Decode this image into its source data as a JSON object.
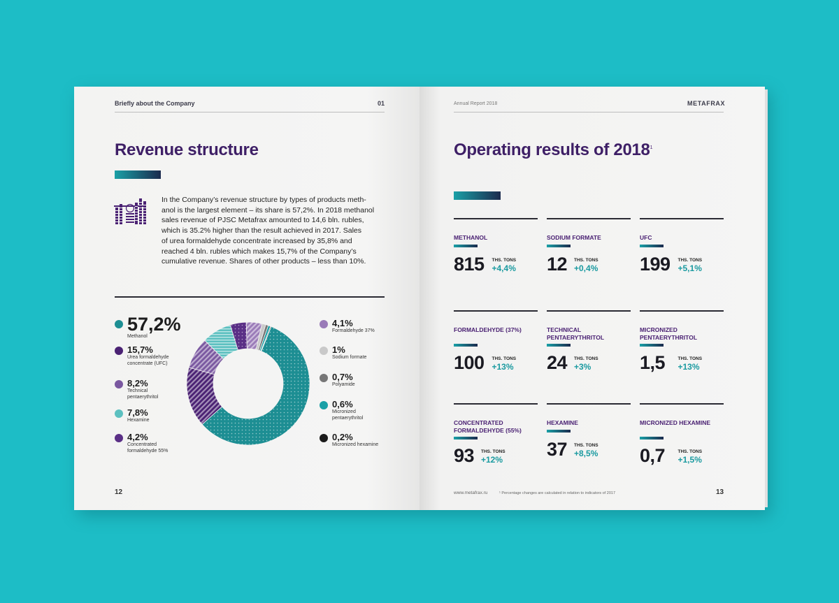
{
  "left": {
    "header_title": "Briefly about the Company",
    "header_num": "01",
    "title": "Revenue structure",
    "paragraph_lines": [
      "In the Company’s revenue structure by types of products meth-",
      "anol is the largest element – its share is 57,2%. In 2018 methanol",
      "sales revenue of PJSC Metafrax amounted to 14,6 bln. rubles,",
      "which is 35.2% higher than the result achieved in 2017. Sales",
      "of urea formaldehyde concentrate increased by 35,8% and",
      "reached 4 bln. rubles which makes 15,7% of the Company’s",
      "cumulative revenue. Shares of other products – less than 10%."
    ],
    "legend_left": [
      {
        "value": "57,2%",
        "label": [
          "Methanol"
        ],
        "color": "#1d8e93"
      },
      {
        "value": "15,7%",
        "label": [
          "Urea formaldehyde",
          "concentrate (UFC)"
        ],
        "color": "#4a2173"
      },
      {
        "value": "8,2%",
        "label": [
          "Technical",
          "pentaerythritol"
        ],
        "color": "#7a58a0"
      },
      {
        "value": "7,8%",
        "label": [
          "Hexamine"
        ],
        "color": "#5cc0c0"
      },
      {
        "value": "4,2%",
        "label": [
          "Concentrated",
          "formaldehyde 55%"
        ],
        "color": "#5a2f86"
      }
    ],
    "legend_right": [
      {
        "value": "4,1%",
        "label": [
          "Formaldehyde 37%"
        ],
        "color": "#9a7bb8"
      },
      {
        "value": "1%",
        "label": [
          "Sodium formate"
        ],
        "color": "#c9c9c9"
      },
      {
        "value": "0,7%",
        "label": [
          "Polyamide"
        ],
        "color": "#777777"
      },
      {
        "value": "0,6%",
        "label": [
          "Micronized",
          "pentaerythritol"
        ],
        "color": "#1aa0a6"
      },
      {
        "value": "0,2%",
        "label": [
          "Micronized hexamine"
        ],
        "color": "#1a1a1a"
      }
    ],
    "page_number": "12"
  },
  "chart_data": {
    "type": "pie",
    "donut": true,
    "slices": [
      {
        "name": "Methanol",
        "value": 57.2,
        "color": "#1d8e93"
      },
      {
        "name": "Urea formaldehyde concentrate (UFC)",
        "value": 15.7,
        "color": "#4a2173"
      },
      {
        "name": "Technical pentaerythritol",
        "value": 8.2,
        "color": "#7a58a0"
      },
      {
        "name": "Hexamine",
        "value": 7.8,
        "color": "#5cc0c0"
      },
      {
        "name": "Concentrated formaldehyde 55%",
        "value": 4.2,
        "color": "#5a2f86"
      },
      {
        "name": "Formaldehyde 37%",
        "value": 4.1,
        "color": "#9a7bb8"
      },
      {
        "name": "Sodium formate",
        "value": 1,
        "color": "#c9c9c9"
      },
      {
        "name": "Polyamide",
        "value": 0.7,
        "color": "#777777"
      },
      {
        "name": "Micronized pentaerythritol",
        "value": 0.6,
        "color": "#1aa0a6"
      },
      {
        "name": "Micronized hexamine",
        "value": 0.2,
        "color": "#1a1a1a"
      }
    ]
  },
  "right": {
    "header_title": "Annual Report 2018",
    "header_brand": "METAFRAX",
    "title": "Operating results of 2018",
    "title_sup": "1",
    "unit_label": "THS. TONS",
    "cells": [
      {
        "name": "METHANOL",
        "value": "815",
        "change": "+4,4%"
      },
      {
        "name": "SODIUM FORMATE",
        "value": "12",
        "change": "+0,4%"
      },
      {
        "name": "UFC",
        "value": "199",
        "change": "+5,1%"
      },
      {
        "name": "FORMALDEHYDE (37%)",
        "value": "100",
        "change": "+13%"
      },
      {
        "name": "TECHNICAL PENTAERYTHRITOL",
        "value": "24",
        "change": "+3%"
      },
      {
        "name": "MICRONIZED PENTAERYTHRITOL",
        "value": "1,5",
        "change": "+13%"
      },
      {
        "name": "CONCENTRATED FORMALDEHYDE (55%)",
        "value": "93",
        "change": "+12%"
      },
      {
        "name": "HEXAMINE",
        "value": "37",
        "change": "+8,5%"
      },
      {
        "name": "MICRONIZED HEXAMINE",
        "value": "0,7",
        "change": "+1,5%"
      }
    ],
    "footer_url": "www.metafrax.ru",
    "footnote": "¹ Percentage changes are calculated in relation to indicators of 2017",
    "page_number": "13"
  }
}
